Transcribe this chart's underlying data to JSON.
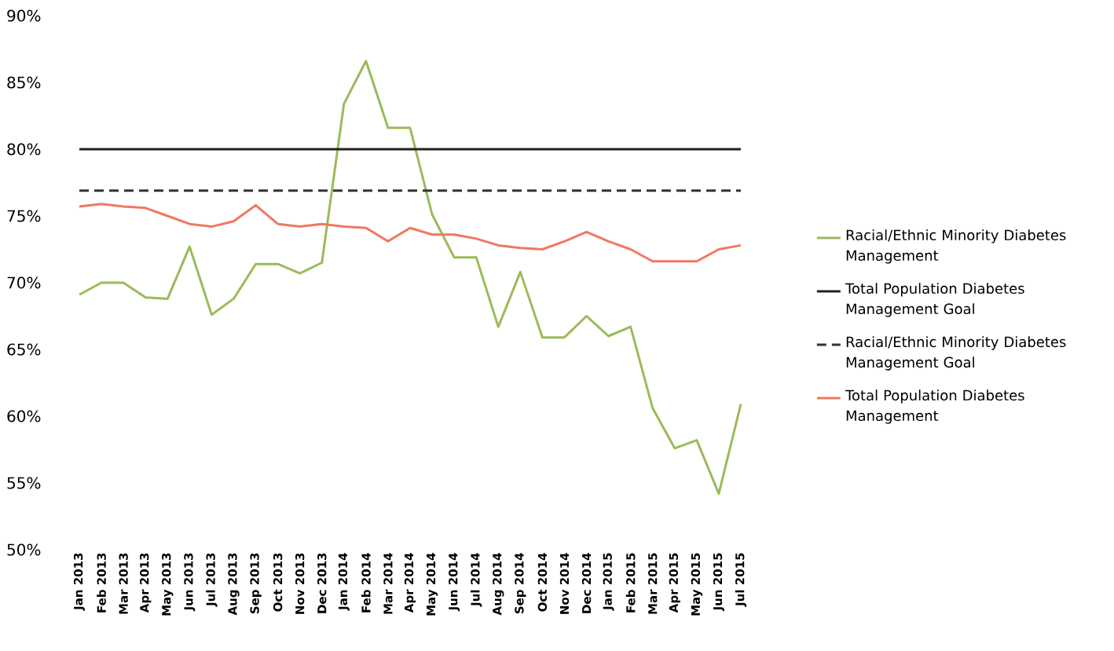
{
  "chart_data": {
    "type": "line",
    "categories": [
      "Jan 2013",
      "Feb 2013",
      "Mar 2013",
      "Apr 2013",
      "May 2013",
      "Jun 2013",
      "Jul 2013",
      "Aug 2013",
      "Sep 2013",
      "Oct 2013",
      "Nov 2013",
      "Dec 2013",
      "Jan 2014",
      "Feb 2014",
      "Mar 2014",
      "Apr 2014",
      "May 2014",
      "Jun 2014",
      "Jul 2014",
      "Aug 2014",
      "Sep 2014",
      "Oct 2014",
      "Nov 2014",
      "Dec 2014",
      "Jan 2015",
      "Feb 2015",
      "Mar 2015",
      "Apr 2015",
      "May 2015",
      "Jun 2015",
      "Jul 2015"
    ],
    "series": [
      {
        "name": "Racial/Ethnic Minority Diabetes Management",
        "color": "#9bbb59",
        "line_style": "solid",
        "values": [
          69.1,
          70.0,
          70.0,
          68.9,
          68.8,
          72.7,
          67.6,
          68.8,
          71.4,
          71.4,
          70.7,
          71.5,
          83.4,
          86.6,
          81.6,
          81.6,
          75.1,
          71.9,
          71.9,
          66.7,
          70.8,
          65.9,
          65.9,
          67.5,
          66.0,
          66.7,
          60.6,
          57.6,
          58.2,
          54.2,
          60.9
        ]
      },
      {
        "name": "Total Population Diabetes Management Goal",
        "color": "#222222",
        "line_style": "solid",
        "values": [
          80,
          80,
          80,
          80,
          80,
          80,
          80,
          80,
          80,
          80,
          80,
          80,
          80,
          80,
          80,
          80,
          80,
          80,
          80,
          80,
          80,
          80,
          80,
          80,
          80,
          80,
          80,
          80,
          80,
          80,
          80
        ]
      },
      {
        "name": "Racial/Ethnic Minority Diabetes Management Goal",
        "color": "#333333",
        "line_style": "dashed",
        "values": [
          76.9,
          76.9,
          76.9,
          76.9,
          76.9,
          76.9,
          76.9,
          76.9,
          76.9,
          76.9,
          76.9,
          76.9,
          76.9,
          76.9,
          76.9,
          76.9,
          76.9,
          76.9,
          76.9,
          76.9,
          76.9,
          76.9,
          76.9,
          76.9,
          76.9,
          76.9,
          76.9,
          76.9,
          76.9,
          76.9,
          76.9
        ]
      },
      {
        "name": "Total Population Diabetes Management",
        "color": "#f07860",
        "line_style": "solid",
        "values": [
          75.7,
          75.9,
          75.7,
          75.6,
          75.0,
          74.4,
          74.2,
          74.6,
          75.8,
          74.4,
          74.2,
          74.4,
          74.2,
          74.1,
          73.1,
          74.1,
          73.6,
          73.6,
          73.3,
          72.8,
          72.6,
          72.5,
          73.1,
          73.8,
          73.1,
          72.5,
          71.6,
          71.6,
          71.6,
          72.5,
          72.8
        ]
      }
    ],
    "ylim": [
      50,
      90
    ],
    "yticks": [
      {
        "value": 50,
        "label": "50%"
      },
      {
        "value": 55,
        "label": "55%"
      },
      {
        "value": 60,
        "label": "60%"
      },
      {
        "value": 65,
        "label": "65%"
      },
      {
        "value": 70,
        "label": "70%"
      },
      {
        "value": 75,
        "label": "75%"
      },
      {
        "value": 80,
        "label": "80%"
      },
      {
        "value": 85,
        "label": "85%"
      },
      {
        "value": 90,
        "label": "90%"
      }
    ],
    "legend": "right"
  }
}
